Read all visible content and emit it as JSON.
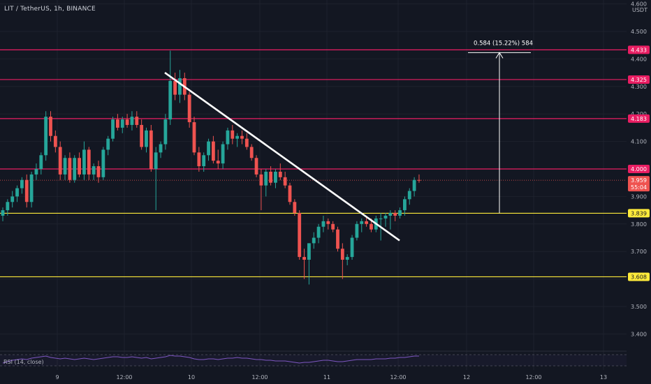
{
  "symbol": {
    "title": "LIT / TetherUS, 1h, BINANCE",
    "currency": "USDT"
  },
  "colors": {
    "background": "#131722",
    "grid": "#1e222d",
    "up": "#26a69a",
    "down": "#ef5350",
    "magenta_level": "#e91e63",
    "yellow_level": "#ffeb3b",
    "trendline": "#ffffff",
    "rsi_line": "#7e57c2",
    "axis_text": "#b2b5be"
  },
  "price_axis": {
    "ticks": [
      "4.600",
      "4.500",
      "4.400",
      "4.300",
      "4.200",
      "4.100",
      "4.000",
      "3.900",
      "3.800",
      "3.700",
      "3.600",
      "3.500",
      "3.400"
    ]
  },
  "time_axis": {
    "ticks": [
      "9",
      "12:00",
      "10",
      "12:00",
      "11",
      "12:00",
      "12",
      "12:00",
      "13"
    ]
  },
  "levels": [
    {
      "price": 4.433,
      "label": "4.433",
      "color": "#e91e63"
    },
    {
      "price": 4.325,
      "label": "4.325",
      "color": "#e91e63"
    },
    {
      "price": 4.183,
      "label": "4.183",
      "color": "#e91e63"
    },
    {
      "price": 4.0,
      "label": "4.000",
      "color": "#e91e63"
    },
    {
      "price": 3.839,
      "label": "3.839",
      "color": "#ffeb3b"
    },
    {
      "price": 3.608,
      "label": "3.608",
      "color": "#ffeb3b"
    }
  ],
  "current_price": {
    "price": 3.959,
    "label": "3.959",
    "countdown": "55:04",
    "color": "#ef5350"
  },
  "measure": {
    "label": "0.584 (15.22%) 584",
    "from_price": 3.839,
    "to_price": 4.423
  },
  "trendline": {
    "from": {
      "time": "Mar 9 23:00",
      "price": 4.35
    },
    "to": {
      "time": "Mar 11 09:00",
      "price": 3.74
    }
  },
  "rsi": {
    "label": "RSI (14, close)"
  },
  "chart_data": {
    "type": "candlestick",
    "symbol": "LIT / TetherUS",
    "interval": "1h",
    "ylim": [
      3.32,
      4.62
    ],
    "candles_ohlc": [
      [
        3.83,
        3.86,
        3.81,
        3.85
      ],
      [
        3.85,
        3.89,
        3.83,
        3.88
      ],
      [
        3.88,
        3.92,
        3.86,
        3.9
      ],
      [
        3.9,
        3.94,
        3.88,
        3.93
      ],
      [
        3.93,
        3.97,
        3.91,
        3.96
      ],
      [
        3.96,
        3.98,
        3.86,
        3.88
      ],
      [
        3.88,
        3.99,
        3.86,
        3.98
      ],
      [
        3.98,
        4.02,
        3.96,
        4.0
      ],
      [
        4.0,
        4.06,
        3.98,
        4.05
      ],
      [
        4.05,
        4.21,
        4.03,
        4.19
      ],
      [
        4.19,
        4.21,
        4.1,
        4.12
      ],
      [
        4.12,
        4.14,
        4.06,
        4.08
      ],
      [
        4.08,
        4.1,
        3.96,
        3.98
      ],
      [
        3.98,
        4.05,
        3.96,
        4.04
      ],
      [
        4.04,
        4.06,
        3.95,
        3.96
      ],
      [
        3.96,
        4.05,
        3.95,
        4.04
      ],
      [
        4.04,
        4.06,
        3.97,
        3.98
      ],
      [
        3.98,
        4.1,
        3.96,
        4.07
      ],
      [
        4.07,
        4.08,
        3.96,
        3.98
      ],
      [
        3.98,
        4.02,
        3.96,
        4.01
      ],
      [
        4.01,
        4.03,
        3.95,
        3.97
      ],
      [
        3.97,
        4.08,
        3.96,
        4.07
      ],
      [
        4.07,
        4.12,
        4.05,
        4.11
      ],
      [
        4.11,
        4.19,
        4.1,
        4.18
      ],
      [
        4.18,
        4.2,
        4.14,
        4.15
      ],
      [
        4.15,
        4.19,
        4.13,
        4.18
      ],
      [
        4.18,
        4.2,
        4.15,
        4.16
      ],
      [
        4.16,
        4.21,
        4.14,
        4.19
      ],
      [
        4.19,
        4.21,
        4.15,
        4.16
      ],
      [
        4.16,
        4.18,
        4.07,
        4.08
      ],
      [
        4.08,
        4.15,
        4.06,
        4.14
      ],
      [
        4.14,
        4.16,
        3.99,
        4.0
      ],
      [
        4.0,
        4.08,
        3.85,
        4.06
      ],
      [
        4.06,
        4.1,
        4.04,
        4.09
      ],
      [
        4.09,
        4.2,
        4.07,
        4.18
      ],
      [
        4.18,
        4.43,
        4.16,
        4.32
      ],
      [
        4.32,
        4.35,
        4.25,
        4.27
      ],
      [
        4.27,
        4.36,
        4.24,
        4.33
      ],
      [
        4.33,
        4.35,
        4.25,
        4.27
      ],
      [
        4.27,
        4.28,
        4.15,
        4.17
      ],
      [
        4.17,
        4.19,
        4.05,
        4.06
      ],
      [
        4.06,
        4.08,
        3.99,
        4.01
      ],
      [
        4.01,
        4.06,
        3.99,
        4.05
      ],
      [
        4.05,
        4.11,
        4.03,
        4.1
      ],
      [
        4.1,
        4.12,
        4.02,
        4.03
      ],
      [
        4.03,
        4.07,
        4.0,
        4.02
      ],
      [
        4.02,
        4.1,
        4.0,
        4.09
      ],
      [
        4.09,
        4.15,
        4.07,
        4.14
      ],
      [
        4.14,
        4.16,
        4.09,
        4.11
      ],
      [
        4.11,
        4.13,
        4.08,
        4.12
      ],
      [
        4.12,
        4.14,
        4.09,
        4.11
      ],
      [
        4.11,
        4.13,
        4.07,
        4.08
      ],
      [
        4.08,
        4.09,
        4.03,
        4.04
      ],
      [
        4.04,
        4.05,
        3.97,
        3.98
      ],
      [
        3.98,
        4.0,
        3.85,
        3.94
      ],
      [
        3.94,
        4.0,
        3.9,
        3.99
      ],
      [
        3.99,
        4.01,
        3.94,
        3.95
      ],
      [
        3.95,
        4.0,
        3.93,
        3.99
      ],
      [
        3.99,
        4.02,
        3.96,
        3.97
      ],
      [
        3.97,
        3.99,
        3.93,
        3.94
      ],
      [
        3.94,
        3.95,
        3.87,
        3.88
      ],
      [
        3.88,
        3.89,
        3.83,
        3.84
      ],
      [
        3.84,
        3.85,
        3.67,
        3.68
      ],
      [
        3.68,
        3.71,
        3.6,
        3.67
      ],
      [
        3.67,
        3.73,
        3.58,
        3.73
      ],
      [
        3.73,
        3.77,
        3.71,
        3.75
      ],
      [
        3.75,
        3.8,
        3.73,
        3.79
      ],
      [
        3.79,
        3.83,
        3.77,
        3.81
      ],
      [
        3.81,
        3.82,
        3.78,
        3.8
      ],
      [
        3.8,
        3.81,
        3.77,
        3.78
      ],
      [
        3.78,
        3.79,
        3.7,
        3.71
      ],
      [
        3.71,
        3.73,
        3.6,
        3.67
      ],
      [
        3.67,
        3.69,
        3.65,
        3.68
      ],
      [
        3.68,
        3.76,
        3.67,
        3.75
      ],
      [
        3.75,
        3.81,
        3.74,
        3.8
      ],
      [
        3.8,
        3.82,
        3.77,
        3.81
      ],
      [
        3.81,
        3.83,
        3.79,
        3.8
      ],
      [
        3.8,
        3.82,
        3.77,
        3.78
      ],
      [
        3.78,
        3.83,
        3.77,
        3.82
      ],
      [
        3.82,
        3.84,
        3.74,
        3.82
      ],
      [
        3.82,
        3.84,
        3.79,
        3.83
      ],
      [
        3.83,
        3.85,
        3.78,
        3.84
      ],
      [
        3.84,
        3.85,
        3.81,
        3.83
      ],
      [
        3.83,
        3.86,
        3.82,
        3.85
      ],
      [
        3.85,
        3.9,
        3.83,
        3.89
      ],
      [
        3.89,
        3.93,
        3.87,
        3.92
      ],
      [
        3.92,
        3.97,
        3.9,
        3.96
      ],
      [
        3.96,
        3.98,
        3.95,
        3.959
      ]
    ]
  }
}
